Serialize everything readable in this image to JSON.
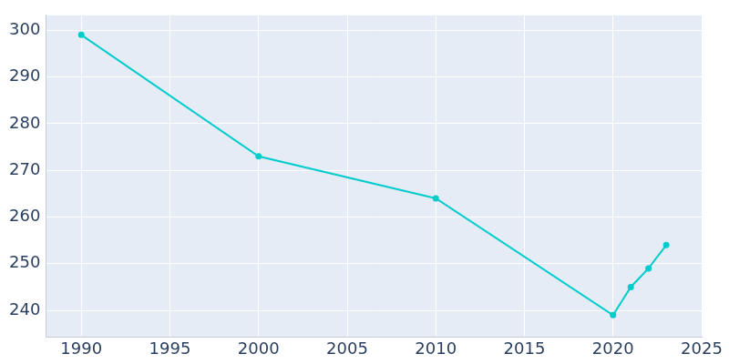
{
  "chart_data": {
    "type": "line",
    "x": [
      1990,
      2000,
      2010,
      2020,
      2021,
      2022,
      2023
    ],
    "values": [
      299,
      273,
      264,
      239,
      245,
      249,
      254
    ],
    "color": "#00cccc",
    "marker": "circle",
    "xlim": [
      1988,
      2025
    ],
    "xticks": [
      1990,
      1995,
      2000,
      2005,
      2010,
      2015,
      2020,
      2025
    ],
    "ylim": [
      234.3,
      303.2
    ],
    "yticks": [
      240,
      250,
      260,
      270,
      280,
      290,
      300
    ],
    "grid": true
  }
}
